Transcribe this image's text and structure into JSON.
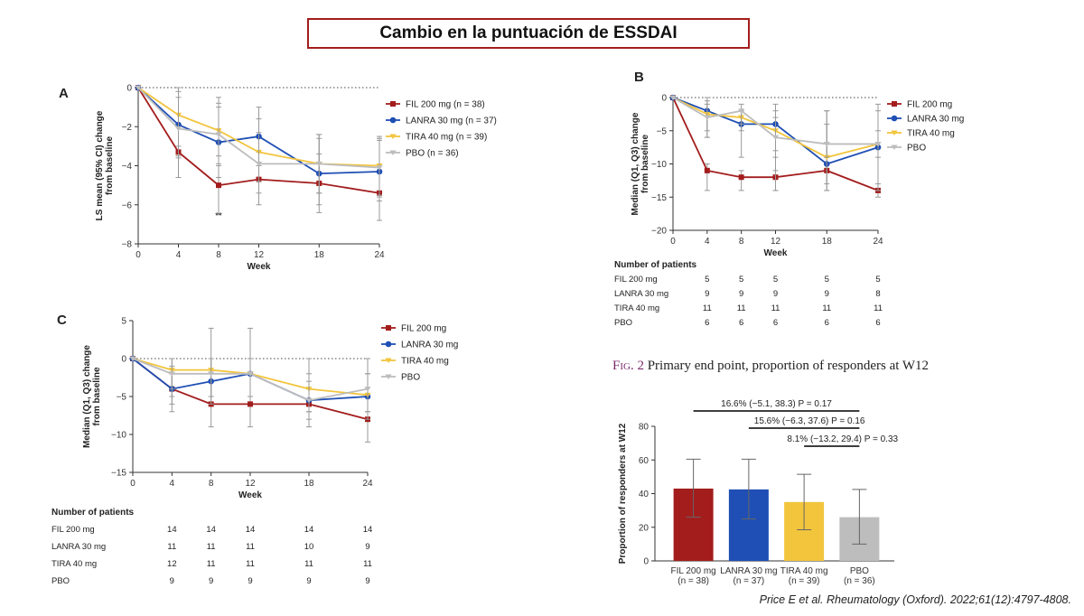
{
  "slide_title": "Cambio en la puntuación de ESSDAI",
  "citation": "Price E et al. Rheumatology (Oxford). 2022;61(12):4797-4808.",
  "figure_caption": {
    "prefix": "Fig. 2",
    "text": " Primary end point, proportion of responders at W12"
  },
  "colors": {
    "fil": "#a31d1d",
    "lanra": "#1f4fb4",
    "tira": "#f2c53d",
    "pbo": "#bdbdbd",
    "title_border": "#a31d1d"
  },
  "chart_data": [
    {
      "panel": "A",
      "type": "line",
      "xlabel": "Week",
      "ylabel": "LS mean (95% CI) change from baseline",
      "x": [
        0,
        4,
        8,
        12,
        18,
        24
      ],
      "xlim": [
        0,
        24
      ],
      "ylim": [
        -8,
        0
      ],
      "yticks": [
        0,
        -2,
        -4,
        -6,
        -8
      ],
      "ytick_labels": [
        "0",
        "−2",
        "−4",
        "−6",
        "−8"
      ],
      "annotation": {
        "text": "**",
        "x": 8,
        "y": -6.7
      },
      "legend_position": "top-right",
      "series": [
        {
          "key": "fil",
          "name": "FIL 200 mg (n = 38)",
          "values": [
            0,
            -3.3,
            -5.0,
            -4.7,
            -4.9,
            -5.4
          ],
          "err_low": [
            0,
            -4.6,
            -6.5,
            -6.0,
            -6.4,
            -6.8
          ],
          "err_high": [
            0,
            -2.0,
            -3.5,
            -3.3,
            -3.4,
            -4.0
          ]
        },
        {
          "key": "lanra",
          "name": "LANRA 30 mg (n = 37)",
          "values": [
            0,
            -1.9,
            -2.8,
            -2.5,
            -4.4,
            -4.3
          ],
          "err_low": [
            0,
            -3.5,
            -4.6,
            -4.0,
            -6.0,
            -5.8
          ],
          "err_high": [
            0,
            -0.2,
            -1.0,
            -1.0,
            -2.6,
            -2.7
          ]
        },
        {
          "key": "tira",
          "name": "TIRA 40 mg (n = 39)",
          "values": [
            0,
            -1.4,
            -2.2,
            -3.3,
            -3.9,
            -4.0
          ],
          "err_low": [
            0,
            -3.0,
            -3.9,
            -4.8,
            -5.4,
            -5.5
          ],
          "err_high": [
            0,
            0.0,
            -0.5,
            -1.6,
            -2.4,
            -2.5
          ]
        },
        {
          "key": "pbo",
          "name": "PBO (n = 36)",
          "values": [
            0,
            -2.1,
            -2.4,
            -3.9,
            -3.9,
            -4.1
          ],
          "err_low": [
            0,
            -3.6,
            -4.0,
            -5.4,
            -5.4,
            -5.6
          ],
          "err_high": [
            0,
            -0.5,
            -0.8,
            -2.3,
            -2.4,
            -2.6
          ]
        }
      ]
    },
    {
      "panel": "B",
      "type": "line",
      "xlabel": "Week",
      "ylabel": "Median (Q1, Q3) change from baseline",
      "x": [
        0,
        4,
        8,
        12,
        18,
        24
      ],
      "xlim": [
        0,
        24
      ],
      "ylim": [
        -20,
        0
      ],
      "yticks": [
        0,
        -5,
        -10,
        -15,
        -20
      ],
      "ytick_labels": [
        "0",
        "−5",
        "−10",
        "−15",
        "−20"
      ],
      "legend_position": "top-right",
      "series": [
        {
          "key": "fil",
          "name": "FIL 200 mg",
          "values": [
            0,
            -11,
            -12,
            -12,
            -11,
            -14
          ],
          "err_low": [
            0,
            -14,
            -14,
            -14,
            -13,
            -15
          ],
          "err_high": [
            0,
            -10,
            -11,
            -11,
            -9,
            -13
          ]
        },
        {
          "key": "lanra",
          "name": "LANRA 30 mg",
          "values": [
            0,
            -2,
            -4,
            -4,
            -10,
            -7.5
          ],
          "err_low": [
            0,
            -6,
            -9,
            -14,
            -14,
            -14
          ],
          "err_high": [
            0,
            0,
            -2,
            -1,
            -2,
            -1
          ]
        },
        {
          "key": "tira",
          "name": "TIRA 40 mg",
          "values": [
            0,
            -2.5,
            -3,
            -5,
            -9,
            -7
          ],
          "err_low": [
            0,
            -6,
            -5,
            -8,
            -14,
            -14
          ],
          "err_high": [
            0,
            -0.5,
            -2,
            -3,
            -2,
            -2
          ]
        },
        {
          "key": "pbo",
          "name": "PBO",
          "values": [
            0,
            -3,
            -2,
            -6,
            -7,
            -7
          ],
          "err_low": [
            0,
            -5,
            -4,
            -9,
            -9,
            -9
          ],
          "err_high": [
            0,
            -1,
            -1,
            -2,
            -4,
            -5
          ]
        }
      ],
      "patients_table": {
        "header": "Number of patients",
        "rows": [
          {
            "label": "FIL 200 mg",
            "values": [
              "5",
              "5",
              "5",
              "5",
              "5"
            ]
          },
          {
            "label": "LANRA 30 mg",
            "values": [
              "9",
              "9",
              "9",
              "9",
              "8"
            ]
          },
          {
            "label": "TIRA 40 mg",
            "values": [
              "11",
              "11",
              "11",
              "11",
              "11"
            ]
          },
          {
            "label": "PBO",
            "values": [
              "6",
              "6",
              "6",
              "6",
              "6"
            ]
          }
        ]
      }
    },
    {
      "panel": "C",
      "type": "line",
      "xlabel": "Week",
      "ylabel": "Median (Q1, Q3) change from baseline",
      "x": [
        0,
        4,
        8,
        12,
        18,
        24
      ],
      "xlim": [
        0,
        24
      ],
      "ylim": [
        -15,
        5
      ],
      "yticks": [
        5,
        0,
        -5,
        -10,
        -15
      ],
      "ytick_labels": [
        "5",
        "0",
        "−5",
        "−10",
        "−15"
      ],
      "legend_position": "top-right",
      "series": [
        {
          "key": "fil",
          "name": "FIL 200 mg",
          "values": [
            0,
            -4,
            -6,
            -6,
            -6,
            -8
          ],
          "err_low": [
            0,
            -7,
            -9,
            -9,
            -9,
            -11
          ],
          "err_high": [
            0,
            -2,
            -3,
            -5,
            -4,
            -5
          ]
        },
        {
          "key": "lanra",
          "name": "LANRA 30 mg",
          "values": [
            0,
            -4,
            -3,
            -2,
            -5.5,
            -5
          ],
          "err_low": [
            0,
            -6,
            -6,
            -5,
            -8,
            -8
          ],
          "err_high": [
            0,
            -1,
            4,
            4,
            0,
            0
          ]
        },
        {
          "key": "tira",
          "name": "TIRA 40 mg",
          "values": [
            0,
            -1.5,
            -1.5,
            -2,
            -4,
            -4.8
          ],
          "err_low": [
            0,
            -4,
            -5,
            -5,
            -7,
            -7
          ],
          "err_high": [
            0,
            0,
            0,
            0,
            -2,
            -2
          ]
        },
        {
          "key": "pbo",
          "name": "PBO",
          "values": [
            0,
            -2,
            -2,
            -2,
            -5.5,
            -4
          ],
          "err_low": [
            0,
            -5,
            -5,
            -5,
            -7,
            -7
          ],
          "err_high": [
            0,
            0,
            0,
            0,
            -3,
            -2
          ]
        }
      ],
      "patients_table": {
        "header": "Number of patients",
        "rows": [
          {
            "label": "FIL 200 mg",
            "values": [
              "14",
              "14",
              "14",
              "14",
              "14"
            ]
          },
          {
            "label": "LANRA 30 mg",
            "values": [
              "11",
              "11",
              "11",
              "10",
              "9"
            ]
          },
          {
            "label": "TIRA 40 mg",
            "values": [
              "12",
              "11",
              "11",
              "11",
              "11"
            ]
          },
          {
            "label": "PBO",
            "values": [
              "9",
              "9",
              "9",
              "9",
              "9"
            ]
          }
        ]
      }
    },
    {
      "panel": "Fig2",
      "type": "bar",
      "ylabel": "Proportion of responders at W12",
      "ylim": [
        0,
        80
      ],
      "yticks": [
        0,
        20,
        40,
        60,
        80
      ],
      "ytick_labels": [
        "0",
        "20",
        "40",
        "60",
        "80"
      ],
      "categories": [
        "FIL 200 mg",
        "LANRA 30 mg",
        "TIRA 40 mg",
        "PBO"
      ],
      "category_sublabels": [
        "(n = 38)",
        "(n = 37)",
        "(n = 39)",
        "(n = 36)"
      ],
      "keys": [
        "fil",
        "lanra",
        "tira",
        "pbo"
      ],
      "values": [
        43,
        42.5,
        35,
        26
      ],
      "err_low": [
        26,
        25,
        18.5,
        10
      ],
      "err_high": [
        60.5,
        60.5,
        51.5,
        42.5
      ],
      "comparisons": [
        {
          "from": 0,
          "to": 3,
          "label": "16.6% (−5.1, 38.3) P = 0.17",
          "level": 0
        },
        {
          "from": 1,
          "to": 3,
          "label": "15.6% (−6.3, 37.6) P = 0.16",
          "level": 1
        },
        {
          "from": 2,
          "to": 3,
          "label": "8.1% (−13.2, 29.4) P = 0.33",
          "level": 2
        }
      ]
    }
  ]
}
